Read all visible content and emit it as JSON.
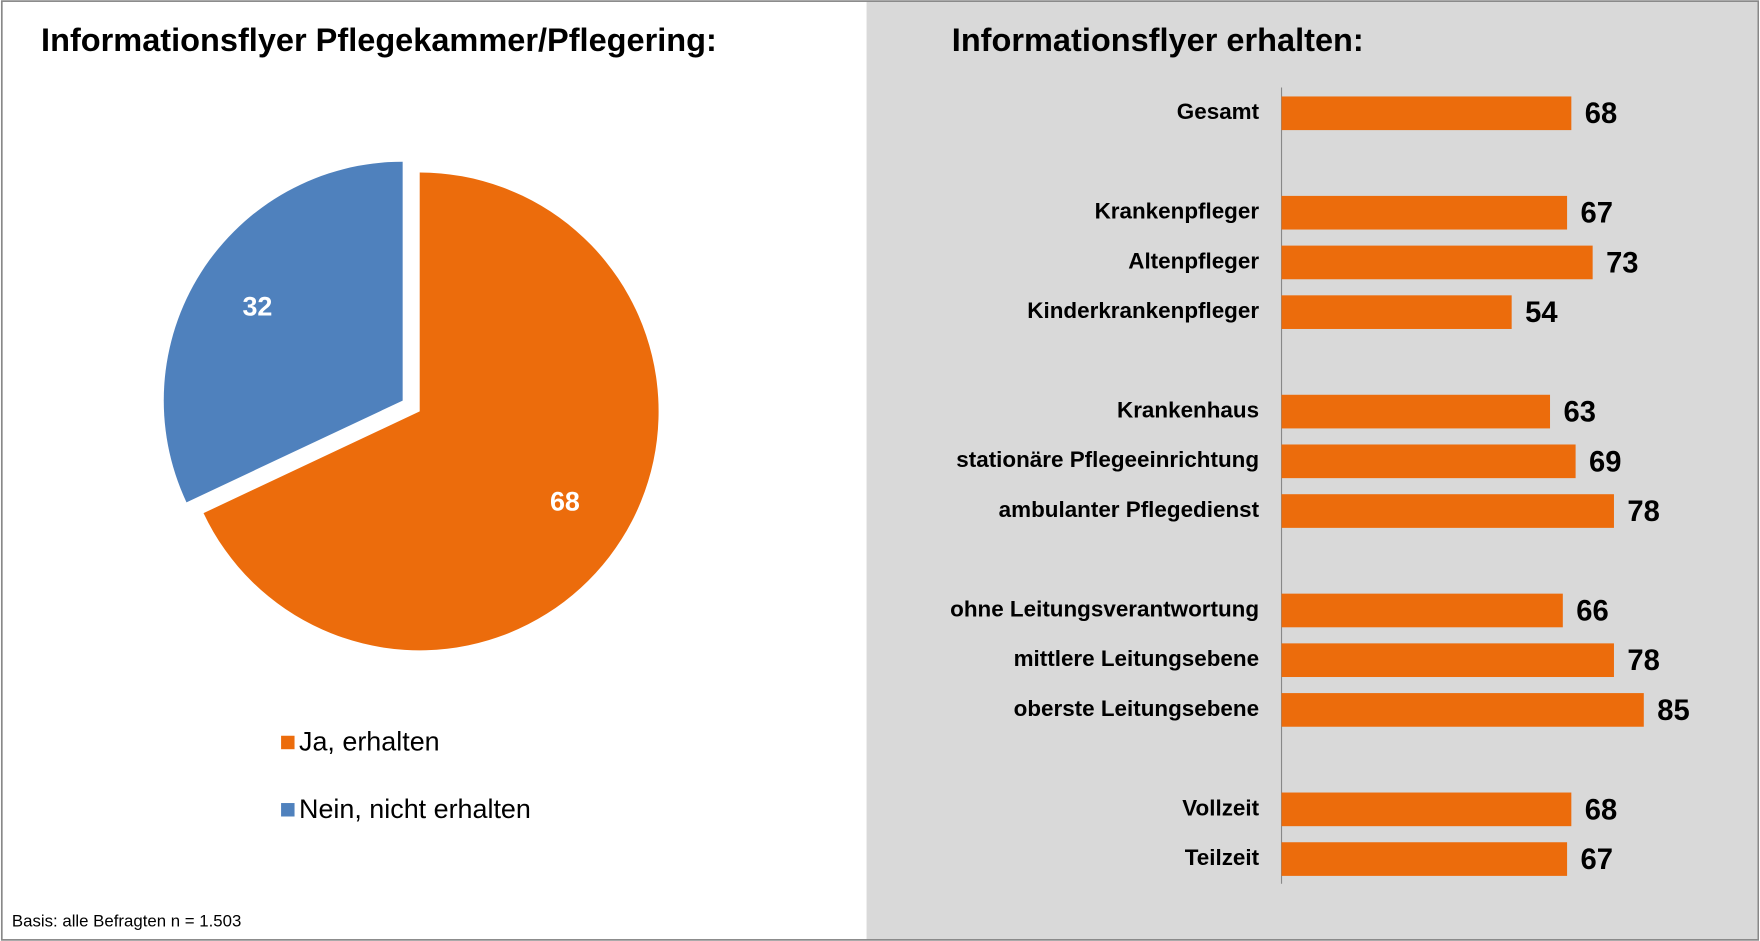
{
  "footnote": "Basis: alle Befragten n = 1.503",
  "chart_data": [
    {
      "type": "pie",
      "title": "Informationsflyer Pflegekammer/Pflegering:",
      "categories": [
        "Ja, erhalten",
        "Nein, nicht erhalten"
      ],
      "values": [
        68,
        32
      ],
      "colors": [
        "#ec6c0c",
        "#4f81bd"
      ],
      "exploded": true,
      "legend": "bottom"
    },
    {
      "type": "barh",
      "title": "Informationsflyer erhalten:",
      "categories": [
        "Gesamt",
        null,
        "Krankenpfleger",
        "Altenpfleger",
        "Kinderkrankenpfleger",
        null,
        "Krankenhaus",
        "stationäre Pflegeeinrichtung",
        "ambulanter Pflegedienst",
        null,
        "ohne Leitungsverantwortung",
        "mittlere Leitungsebene",
        "oberste Leitungsebene",
        null,
        "Vollzeit",
        "Teilzeit"
      ],
      "values": [
        68,
        null,
        67,
        73,
        54,
        null,
        63,
        69,
        78,
        null,
        66,
        78,
        85,
        null,
        68,
        67
      ],
      "color": "#ec6c0c",
      "xlim": [
        0,
        100
      ]
    }
  ]
}
